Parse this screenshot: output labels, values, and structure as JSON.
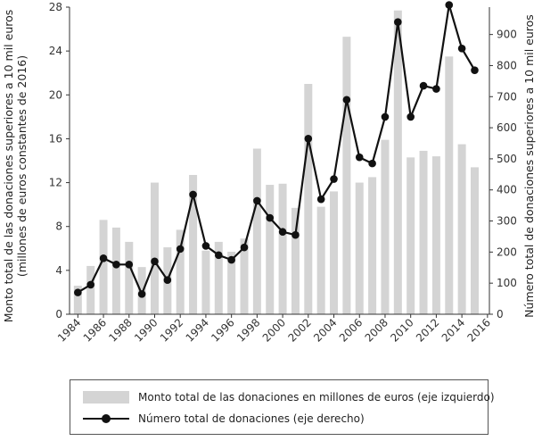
{
  "chart_data": {
    "type": "bar+line",
    "x": [
      1984,
      1985,
      1986,
      1987,
      1988,
      1989,
      1990,
      1991,
      1992,
      1993,
      1994,
      1995,
      1996,
      1997,
      1998,
      1999,
      2000,
      2001,
      2002,
      2003,
      2004,
      2005,
      2006,
      2007,
      2008,
      2009,
      2010,
      2011,
      2012,
      2013,
      2014,
      2015
    ],
    "x_tick_labels": [
      "1984",
      "1986",
      "1988",
      "1990",
      "1992",
      "1994",
      "1996",
      "1998",
      "2000",
      "2002",
      "2004",
      "2006",
      "2008",
      "2010",
      "2012",
      "2014",
      "2016"
    ],
    "series": [
      {
        "type": "bar",
        "axis": "left",
        "name": "Monto total de las donaciones en millones de euros (eje izquierdo)",
        "color": "#d4d4d4",
        "values": [
          2.6,
          4.4,
          8.6,
          7.9,
          6.6,
          4.3,
          12.0,
          6.1,
          7.7,
          12.7,
          5.8,
          6.6,
          5.7,
          6.9,
          15.1,
          11.8,
          11.9,
          9.7,
          21.0,
          9.8,
          11.2,
          25.3,
          12.0,
          12.5,
          15.9,
          27.7,
          14.3,
          14.9,
          14.4,
          23.5,
          15.5,
          13.4
        ]
      },
      {
        "type": "line",
        "axis": "right",
        "name": "Número total de donaciones (eje derecho)",
        "color": "#111111",
        "values": [
          70,
          95,
          180,
          160,
          160,
          65,
          170,
          110,
          210,
          385,
          220,
          190,
          175,
          215,
          365,
          310,
          265,
          255,
          565,
          370,
          435,
          690,
          505,
          485,
          635,
          940,
          635,
          735,
          725,
          995,
          855,
          785
        ]
      }
    ],
    "ylabel_left": "Monto total de las donaciones superiores a 10 mil euros (millones de euros constantes de 2016)",
    "ylabel_right": "Número total de donaciones superiores a 10 mil euros",
    "ylim_left": [
      0,
      28
    ],
    "yticks_left": [
      0,
      4,
      8,
      12,
      16,
      20,
      24,
      28
    ],
    "ylim_right": [
      0,
      988
    ],
    "yticks_right": [
      0,
      100,
      200,
      300,
      400,
      500,
      600,
      700,
      800,
      900
    ],
    "grid": false,
    "legend_position": "bottom"
  },
  "legend": {
    "bar_label": "Monto total de las donaciones en millones de euros (eje izquierdo)",
    "line_label": "Número total de donaciones (eje derecho)"
  }
}
